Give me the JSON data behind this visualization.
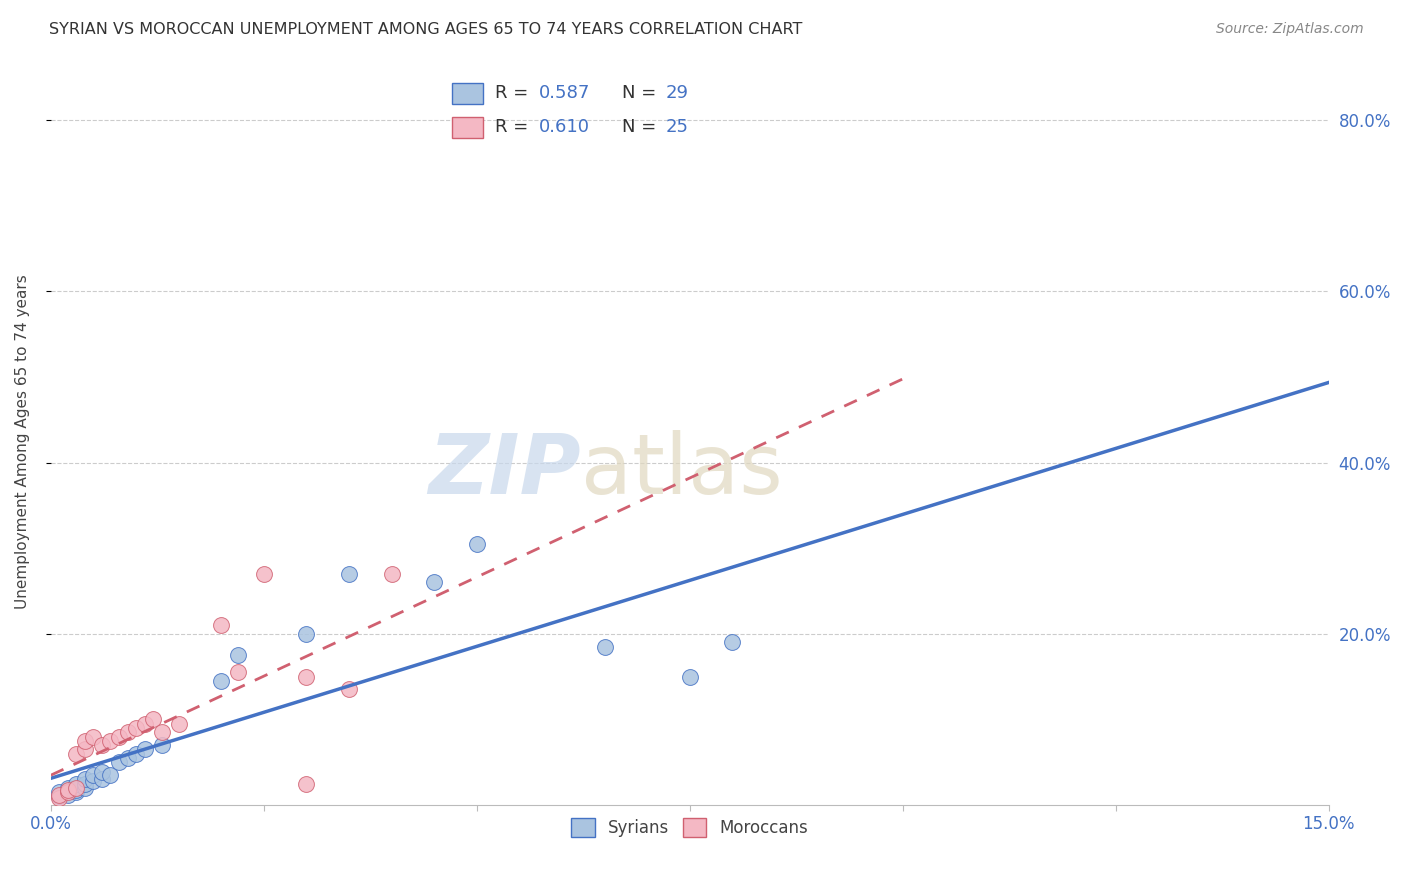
{
  "title": "SYRIAN VS MOROCCAN UNEMPLOYMENT AMONG AGES 65 TO 74 YEARS CORRELATION CHART",
  "source": "Source: ZipAtlas.com",
  "ylabel": "Unemployment Among Ages 65 to 74 years",
  "xlim": [
    0.0,
    0.15
  ],
  "ylim": [
    0.0,
    0.85
  ],
  "ytick_values": [
    0.2,
    0.4,
    0.6,
    0.8
  ],
  "syrian_color": "#aac4e0",
  "moroccan_color": "#f4b8c4",
  "syrian_line_color": "#4472c4",
  "moroccan_line_color": "#d06070",
  "label_color": "#4472c4",
  "grid_color": "#cccccc",
  "R_syrian": 0.587,
  "N_syrian": 29,
  "R_moroccan": 0.61,
  "N_moroccan": 25,
  "syrian_x": [
    0.001,
    0.001,
    0.002,
    0.002,
    0.003,
    0.003,
    0.003,
    0.004,
    0.004,
    0.004,
    0.005,
    0.005,
    0.006,
    0.006,
    0.007,
    0.008,
    0.009,
    0.01,
    0.011,
    0.013,
    0.02,
    0.022,
    0.03,
    0.035,
    0.045,
    0.05,
    0.065,
    0.075,
    0.08
  ],
  "syrian_y": [
    0.01,
    0.015,
    0.012,
    0.02,
    0.015,
    0.018,
    0.025,
    0.02,
    0.025,
    0.03,
    0.028,
    0.035,
    0.03,
    0.038,
    0.035,
    0.05,
    0.055,
    0.06,
    0.065,
    0.07,
    0.145,
    0.175,
    0.2,
    0.27,
    0.26,
    0.305,
    0.185,
    0.15,
    0.19
  ],
  "moroccan_x": [
    0.001,
    0.001,
    0.002,
    0.002,
    0.003,
    0.003,
    0.004,
    0.004,
    0.005,
    0.006,
    0.007,
    0.008,
    0.009,
    0.01,
    0.011,
    0.012,
    0.013,
    0.015,
    0.02,
    0.022,
    0.025,
    0.03,
    0.03,
    0.035,
    0.04
  ],
  "moroccan_y": [
    0.008,
    0.012,
    0.015,
    0.018,
    0.02,
    0.06,
    0.065,
    0.075,
    0.08,
    0.07,
    0.075,
    0.08,
    0.085,
    0.09,
    0.095,
    0.1,
    0.085,
    0.095,
    0.21,
    0.155,
    0.27,
    0.025,
    0.15,
    0.135,
    0.27
  ]
}
